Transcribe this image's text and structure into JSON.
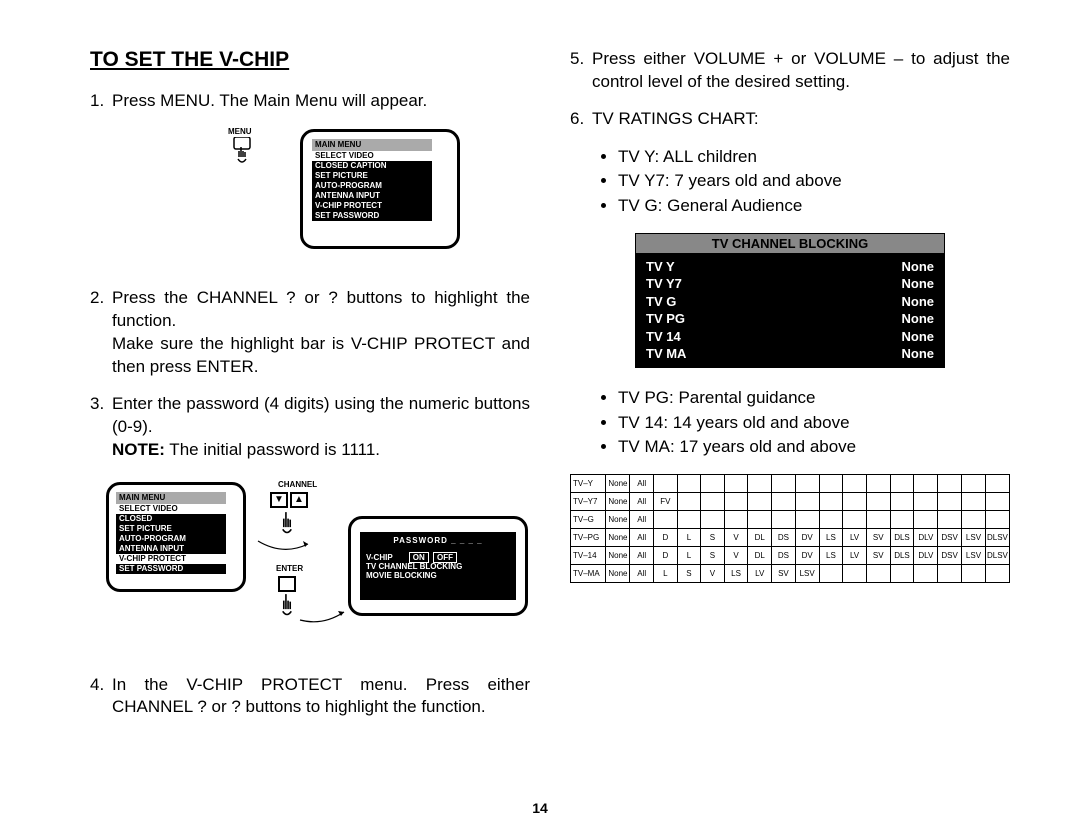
{
  "title": "TO SET THE V-CHIP",
  "steps": {
    "s1": "Press MENU.  The Main Menu will appear.",
    "s2a": "Press the CHANNEL ?  or ?  buttons to highlight the function.",
    "s2b": "Make sure the highlight bar is V-CHIP PROTECT and then press ENTER.",
    "s3a": "Enter the password (4 digits) using the numeric buttons (0-9).",
    "s3b_label": "NOTE:",
    "s3b_rest": "  The initial password is 1111.",
    "s4": "In the V-CHIP PROTECT menu.  Press either CHANNEL ?  or ?  buttons to highlight the function.",
    "s5": "Press either VOLUME + or VOLUME – to adjust the control level of the desired setting.",
    "s6": "TV RATINGS CHART:"
  },
  "ratings_top": [
    "TV Y: ALL children",
    "TV Y7: 7 years old and above",
    "TV G: General Audience"
  ],
  "ratings_bottom": [
    "TV PG:  Parental guidance",
    "TV 14:  14 years old and above",
    "TV MA:  17 years old and above"
  ],
  "menu": {
    "label_menu": "MENU",
    "header": "MAIN MENU",
    "items": [
      "SELECT VIDEO",
      "CLOSED CAPTION",
      "SET PICTURE",
      "AUTO-PROGRAM",
      "ANTENNA INPUT",
      "V-CHIP PROTECT",
      "SET PASSWORD"
    ],
    "items2": [
      "SELECT VIDEO",
      "CLOSED",
      "SET PICTURE",
      "AUTO-PROGRAM",
      "ANTENNA INPUT",
      "V-CHIP PROTECT",
      "SET PASSWORD"
    ],
    "label_channel": "CHANNEL",
    "label_enter": "ENTER",
    "label_password": "PASSWORD",
    "vchip_label": "V-CHIP",
    "on": "ON",
    "off": "OFF",
    "tvblock": "TV CHANNEL BLOCKING",
    "movieblock": "MOVIE BLOCKING"
  },
  "block_table": {
    "header": "TV CHANNEL BLOCKING",
    "rows": [
      [
        "TV Y",
        "None"
      ],
      [
        "TV Y7",
        "None"
      ],
      [
        "TV G",
        "None"
      ],
      [
        "TV PG",
        "None"
      ],
      [
        "TV 14",
        "None"
      ],
      [
        "TV MA",
        "None"
      ]
    ]
  },
  "grid": {
    "rows": [
      [
        "TV–Y",
        "None",
        "All",
        "",
        "",
        "",
        "",
        "",
        "",
        "",
        "",
        "",
        "",
        "",
        "",
        "",
        "",
        ""
      ],
      [
        "TV–Y7",
        "None",
        "All",
        "FV",
        "",
        "",
        "",
        "",
        "",
        "",
        "",
        "",
        "",
        "",
        "",
        "",
        "",
        ""
      ],
      [
        "TV–G",
        "None",
        "All",
        "",
        "",
        "",
        "",
        "",
        "",
        "",
        "",
        "",
        "",
        "",
        "",
        "",
        "",
        ""
      ],
      [
        "TV–PG",
        "None",
        "All",
        "D",
        "L",
        "S",
        "V",
        "DL",
        "DS",
        "DV",
        "LS",
        "LV",
        "SV",
        "DLS",
        "DLV",
        "DSV",
        "LSV",
        "DLSV"
      ],
      [
        "TV–14",
        "None",
        "All",
        "D",
        "L",
        "S",
        "V",
        "DL",
        "DS",
        "DV",
        "LS",
        "LV",
        "SV",
        "DLS",
        "DLV",
        "DSV",
        "LSV",
        "DLSV"
      ],
      [
        "TV–MA",
        "None",
        "All",
        "L",
        "S",
        "V",
        "LS",
        "LV",
        "SV",
        "LSV",
        "",
        "",
        "",
        "",
        "",
        "",
        "",
        ""
      ]
    ]
  },
  "page_number": "14",
  "colors": {
    "bg": "#ffffff",
    "text": "#000000",
    "menu_bg": "#000000",
    "menu_hdr": "#aaaaaa",
    "block_hdr": "#888888"
  }
}
